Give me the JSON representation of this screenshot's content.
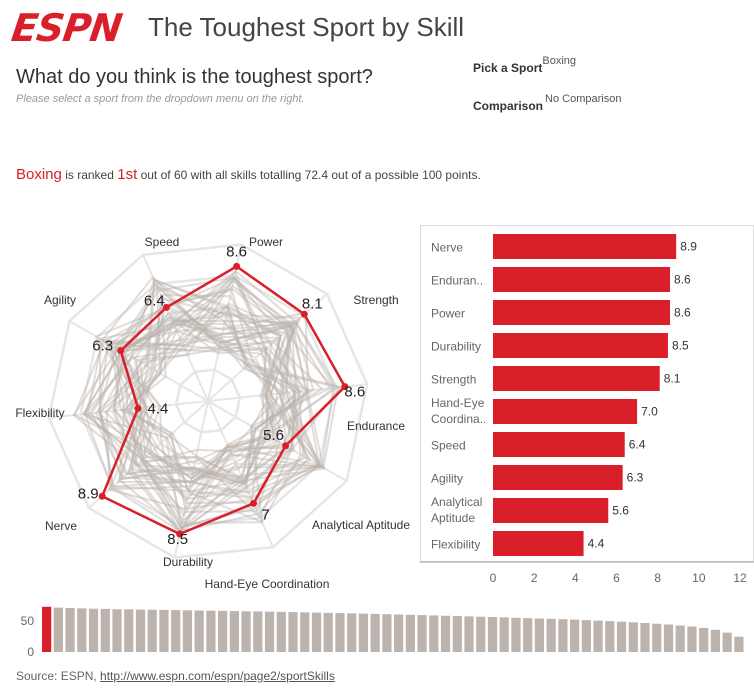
{
  "header": {
    "logo_text": "ESPN",
    "title": "The Toughest Sport by Skill",
    "question": "What do you think is the toughest sport?",
    "instruction": "Please select a sport from the dropdown menu on the right."
  },
  "controls": {
    "sport_label": "Pick a Sport",
    "sport_value": "Boxing",
    "comparison_label": "Comparison",
    "comparison_value": "No Comparison"
  },
  "summary": {
    "sport": "Boxing",
    "text_a": " is ranked ",
    "rank": "1st",
    "text_b": " out of 60 with all skills totalling 72.4 out of a possible 100 points."
  },
  "source": {
    "prefix": "Source: ESPN, ",
    "link": "http://www.espn.com/espn/page2/sportSkills"
  },
  "colors": {
    "accent": "#d9202a",
    "muted": "#bdb3ad",
    "grid": "#e6e6e6"
  },
  "chart_data": [
    {
      "type": "radar",
      "axes": [
        "Power",
        "Strength",
        "Endurance",
        "Analytical Aptitude",
        "Hand-Eye Coordination",
        "Durability",
        "Nerve",
        "Flexibility",
        "Agility",
        "Speed"
      ],
      "max": 10,
      "series": [
        {
          "name": "Boxing",
          "values": [
            8.6,
            8.1,
            8.6,
            5.6,
            7.0,
            8.5,
            8.9,
            4.4,
            6.3,
            6.4
          ]
        }
      ],
      "background_series_note": "other sports drawn as grey polygons"
    },
    {
      "type": "bar",
      "orientation": "horizontal",
      "categories": [
        "Nerve",
        "Enduran..",
        "Power",
        "Durability",
        "Strength",
        "Hand-Eye Coordina..",
        "Speed",
        "Agility",
        "Analytical Aptitude",
        "Flexibility"
      ],
      "values": [
        8.9,
        8.6,
        8.6,
        8.5,
        8.1,
        7.0,
        6.4,
        6.3,
        5.6,
        4.4
      ],
      "value_labels": [
        "8.9",
        "8.6",
        "8.6",
        "8.5",
        "8.1",
        "7.0",
        "6.4",
        "6.3",
        "5.6",
        "4.4"
      ],
      "xlim": [
        0,
        12
      ],
      "xticks": [
        "0",
        "2",
        "4",
        "6",
        "8",
        "10",
        "12"
      ]
    },
    {
      "type": "bar",
      "y_ticks": [
        "50",
        "0"
      ],
      "ylim": [
        0,
        80
      ],
      "highlight_index": 0,
      "values": [
        72.4,
        71.0,
        70.4,
        69.8,
        69.3,
        68.9,
        68.5,
        68.2,
        67.9,
        67.6,
        67.3,
        67.0,
        66.7,
        66.4,
        66.1,
        65.8,
        65.5,
        65.2,
        64.9,
        64.6,
        64.2,
        63.8,
        63.4,
        63.0,
        62.6,
        62.2,
        61.8,
        61.4,
        61.0,
        60.5,
        60.0,
        59.5,
        59.0,
        58.5,
        58.0,
        57.5,
        57.0,
        56.5,
        56.0,
        55.4,
        54.8,
        54.2,
        53.6,
        53.0,
        52.4,
        51.8,
        51.0,
        50.2,
        49.4,
        48.5,
        47.5,
        46.4,
        45.2,
        44.0,
        42.5,
        40.8,
        38.6,
        35.5,
        31.0,
        24.5
      ]
    }
  ]
}
